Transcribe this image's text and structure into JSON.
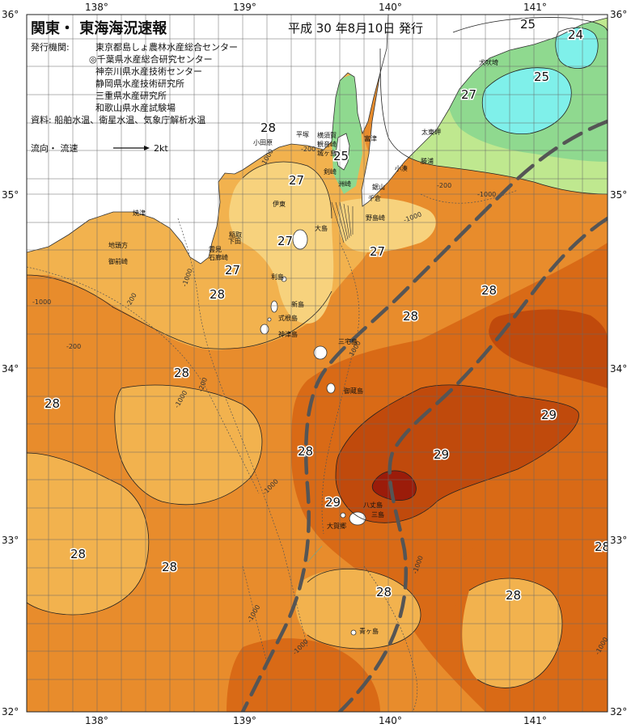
{
  "title": "関東・ 東海海況速報",
  "date": "平成  30 年8月10日  発行",
  "issuer_label": "発行機関:",
  "issuers": [
    "東京都島しょ農林水産総合センター",
    "◎千葉県水産総合研究センター",
    "神奈川県水産技術センター",
    "静岡県水産技術研究所",
    "三重県水産研究所",
    "和歌山県水産試験場"
  ],
  "sources": "資料: 船舶水温、衛星水温、気象庁解析水温",
  "current_legend": {
    "label": "流向・ 流速",
    "value": "2kt"
  },
  "axes": {
    "lon_top": [
      "138°",
      "139°",
      "140°",
      "141°"
    ],
    "lon_bottom": [
      "138°",
      "139°",
      "140°",
      "141°"
    ],
    "lat_left": [
      "36°",
      "35°",
      "34°",
      "33°",
      "32°"
    ],
    "lat_right": [
      "36°",
      "35°",
      "34°",
      "33°",
      "32°"
    ]
  },
  "isotherm_labels": [
    "25",
    "24",
    "25",
    "27",
    "28",
    "25",
    "27",
    "27",
    "27",
    "27",
    "28",
    "28",
    "28",
    "28",
    "28",
    "29",
    "28",
    "29",
    "29",
    "28",
    "28",
    "28",
    "28",
    "28"
  ],
  "depth_labels": [
    "-200",
    "1000",
    "-1000",
    "-200",
    "-1000",
    "-1000",
    "-200",
    "-1000",
    "-200",
    "1000",
    "-1000",
    "-200",
    "-1000",
    "-1000",
    "-1000",
    "-1000",
    "-1000"
  ],
  "places": [
    "平塚",
    "横須賀",
    "小田原",
    "観音崎",
    "城ヶ島",
    "富津",
    "剣崎",
    "洲崎",
    "伊東",
    "鋸山",
    "千倉",
    "大島",
    "野島崎",
    "稲取",
    "下田",
    "雲見",
    "石廊崎",
    "焼津",
    "御前崎",
    "地頭方",
    "利島",
    "新島",
    "式根島",
    "神津島",
    "三宅島",
    "御蔵島",
    "八丈島",
    "三島",
    "大賀郷",
    "青ヶ島",
    "太東岬",
    "勝浦",
    "小湊",
    "犬吠埼"
  ],
  "colors": {
    "land": "#ffffff",
    "sea_24": "#7ff0ea",
    "sea_25": "#8fd98f",
    "sea_26": "#bfe88f",
    "sea_27": "#f7d27d",
    "sea_27_5": "#f2b24e",
    "sea_28": "#e88c2c",
    "sea_28_5": "#d96a16",
    "sea_29": "#c04a0c",
    "sea_30": "#9b1c0a",
    "kuroshio": "#555555",
    "grid": "#666666"
  }
}
